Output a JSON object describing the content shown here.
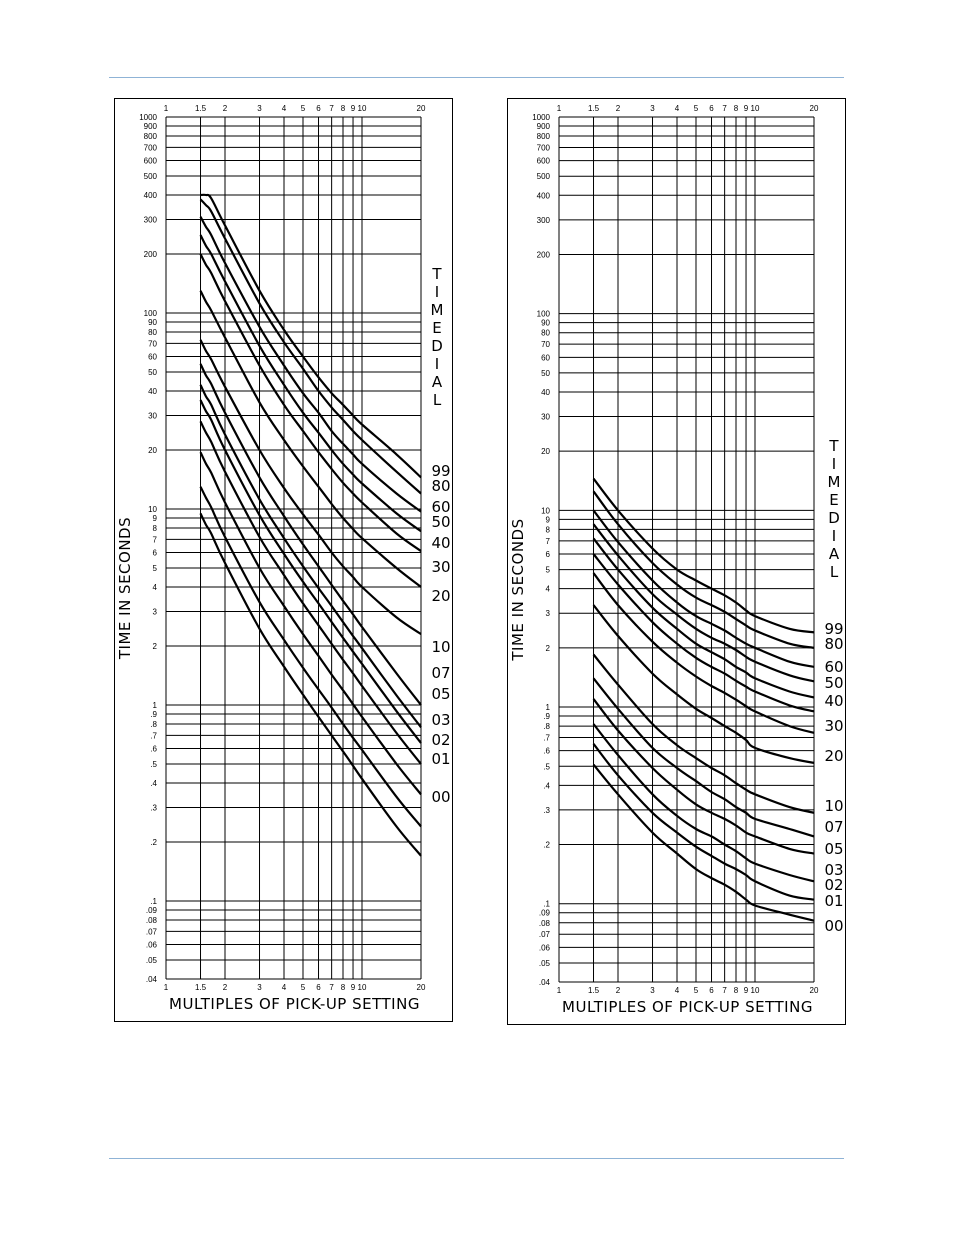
{
  "chart_data": [
    {
      "type": "line",
      "xlabel": "MULTIPLES OF PICK-UP SETTING",
      "ylabel": "TIME IN SECONDS",
      "legend_title": "TIMEDIAL",
      "x_scale": "log",
      "y_scale": "log",
      "xlim": [
        1,
        20
      ],
      "ylim": [
        0.04,
        1000
      ],
      "grid": true,
      "x_ticks": [
        1,
        1.5,
        2,
        3,
        4,
        5,
        6,
        7,
        8,
        9,
        10,
        20
      ],
      "x_tick_labels": [
        "1",
        "1.5",
        "2",
        "3",
        "4",
        "5",
        "6",
        "7",
        "8",
        "9",
        "10",
        "20"
      ],
      "y_ticks": [
        1000,
        900,
        800,
        700,
        600,
        500,
        400,
        300,
        200,
        100,
        90,
        80,
        70,
        60,
        50,
        40,
        30,
        20,
        10,
        9,
        8,
        7,
        6,
        5,
        4,
        3,
        2,
        1,
        0.9,
        0.8,
        0.7,
        0.6,
        0.5,
        0.4,
        0.3,
        0.2,
        0.1,
        0.09,
        0.08,
        0.07,
        0.06,
        0.05,
        0.04
      ],
      "y_tick_labels": [
        "1000",
        "900",
        "800",
        "700",
        "600",
        "500",
        "400",
        "300",
        "200",
        "100",
        "90",
        "80",
        "70",
        "60",
        "50",
        "40",
        "30",
        "20",
        "10",
        "9",
        "8",
        "7",
        "6",
        "5",
        "4",
        "3",
        "2",
        "1",
        ".9",
        ".8",
        ".7",
        ".6",
        ".5",
        ".4",
        ".3",
        ".2",
        ".1",
        ".09",
        ".08",
        ".07",
        ".06",
        ".05",
        ".04"
      ],
      "x": [
        1.5,
        1.6,
        1.7,
        2,
        3,
        4,
        5,
        6,
        7,
        8,
        9,
        10,
        15,
        20
      ],
      "series": [
        {
          "name": "99",
          "values": [
            400,
            400,
            385,
            280,
            130,
            82,
            60,
            47,
            39,
            34,
            30,
            27,
            19,
            14.5
          ]
        },
        {
          "name": "80",
          "values": [
            380,
            355,
            330,
            240,
            112,
            71,
            52,
            40,
            33,
            28.5,
            25,
            22.5,
            15.5,
            12
          ]
        },
        {
          "name": "60",
          "values": [
            310,
            275,
            250,
            180,
            85,
            54,
            39,
            31,
            25,
            21.5,
            19,
            17,
            12,
            9.7
          ]
        },
        {
          "name": "50",
          "values": [
            250,
            220,
            200,
            145,
            68,
            43,
            31,
            24.5,
            20,
            17,
            15,
            13.5,
            9.5,
            7.7
          ]
        },
        {
          "name": "40",
          "values": [
            200,
            176,
            160,
            115,
            54,
            34,
            25,
            19.5,
            16,
            13.6,
            12,
            10.8,
            7.5,
            6.1
          ]
        },
        {
          "name": "30",
          "values": [
            130,
            114,
            103,
            75,
            35,
            22.5,
            16.5,
            13,
            10.6,
            9,
            7.9,
            7.1,
            5,
            4
          ]
        },
        {
          "name": "20",
          "values": [
            73,
            64,
            58,
            42,
            20,
            12.8,
            9.4,
            7.4,
            6,
            5.1,
            4.5,
            4,
            2.8,
            2.3
          ]
        },
        {
          "name": "10",
          "values": [
            55,
            48,
            43.5,
            31,
            14.5,
            9.2,
            6.6,
            5.1,
            4.1,
            3.4,
            2.9,
            2.5,
            1.45,
            1
          ]
        },
        {
          "name": "07",
          "values": [
            43,
            37.5,
            34,
            24,
            11.2,
            7.1,
            5.1,
            3.95,
            3.2,
            2.65,
            2.25,
            1.95,
            1.12,
            0.77
          ]
        },
        {
          "name": "05",
          "values": [
            36,
            31.5,
            28.5,
            20,
            9.3,
            5.9,
            4.25,
            3.3,
            2.65,
            2.2,
            1.87,
            1.62,
            0.93,
            0.64
          ]
        },
        {
          "name": "03",
          "values": [
            28,
            24.5,
            22,
            15.5,
            7.2,
            4.6,
            3.3,
            2.55,
            2.05,
            1.7,
            1.45,
            1.25,
            0.72,
            0.5
          ]
        },
        {
          "name": "02",
          "values": [
            19.5,
            17,
            15.3,
            10.8,
            5,
            3.2,
            2.3,
            1.78,
            1.43,
            1.19,
            1.01,
            0.87,
            0.5,
            0.35
          ]
        },
        {
          "name": "01",
          "values": [
            13,
            11.4,
            10.2,
            7.2,
            3.35,
            2.15,
            1.55,
            1.2,
            0.97,
            0.8,
            0.68,
            0.59,
            0.34,
            0.24
          ]
        },
        {
          "name": "00",
          "values": [
            9.5,
            8.3,
            7.5,
            5.3,
            2.45,
            1.57,
            1.13,
            0.87,
            0.7,
            0.58,
            0.49,
            0.42,
            0.24,
            0.17
          ]
        }
      ]
    },
    {
      "type": "line",
      "xlabel": "MULTIPLES OF PICK-UP SETTING",
      "ylabel": "TIME IN SECONDS",
      "legend_title": "TIMEDIAL",
      "x_scale": "log",
      "y_scale": "log",
      "xlim": [
        1,
        20
      ],
      "ylim": [
        0.04,
        1000
      ],
      "grid": true,
      "x_ticks": [
        1,
        1.5,
        2,
        3,
        4,
        5,
        6,
        7,
        8,
        9,
        10,
        20
      ],
      "x_tick_labels": [
        "1",
        "1.5",
        "2",
        "3",
        "4",
        "5",
        "6",
        "7",
        "8",
        "9",
        "10",
        "20"
      ],
      "y_ticks": [
        1000,
        900,
        800,
        700,
        600,
        500,
        400,
        300,
        200,
        100,
        90,
        80,
        70,
        60,
        50,
        40,
        30,
        20,
        10,
        9,
        8,
        7,
        6,
        5,
        4,
        3,
        2,
        1,
        0.9,
        0.8,
        0.7,
        0.6,
        0.5,
        0.4,
        0.3,
        0.2,
        0.1,
        0.09,
        0.08,
        0.07,
        0.06,
        0.05,
        0.04
      ],
      "y_tick_labels": [
        "1000",
        "900",
        "800",
        "700",
        "600",
        "500",
        "400",
        "300",
        "200",
        "100",
        "90",
        "80",
        "70",
        "60",
        "50",
        "40",
        "30",
        "20",
        "10",
        "9",
        "8",
        "7",
        "6",
        "5",
        "4",
        "3",
        "2",
        "1",
        ".9",
        ".8",
        ".7",
        ".6",
        ".5",
        ".4",
        ".3",
        ".2",
        ".1",
        ".09",
        ".08",
        ".07",
        ".06",
        ".05",
        ".04"
      ],
      "x": [
        1.5,
        2,
        3,
        4,
        5,
        6,
        7,
        8,
        9,
        10,
        15,
        20
      ],
      "series": [
        {
          "name": "99",
          "values": [
            14.5,
            10,
            6.4,
            5,
            4.4,
            4,
            3.7,
            3.4,
            3.1,
            2.9,
            2.5,
            2.4
          ]
        },
        {
          "name": "80",
          "values": [
            12.5,
            8.5,
            5.4,
            4.2,
            3.6,
            3.3,
            3.05,
            2.8,
            2.6,
            2.45,
            2.1,
            2
          ]
        },
        {
          "name": "60",
          "values": [
            10,
            6.9,
            4.4,
            3.4,
            2.9,
            2.65,
            2.45,
            2.25,
            2.1,
            2,
            1.7,
            1.6
          ]
        },
        {
          "name": "50",
          "values": [
            8.5,
            5.9,
            3.75,
            2.95,
            2.5,
            2.25,
            2.1,
            1.95,
            1.8,
            1.7,
            1.45,
            1.35
          ]
        },
        {
          "name": "40",
          "values": [
            7.2,
            5,
            3.2,
            2.5,
            2.1,
            1.9,
            1.75,
            1.6,
            1.5,
            1.4,
            1.2,
            1.12
          ]
        },
        {
          "name": "30",
          "values": [
            6,
            4.2,
            2.7,
            2.1,
            1.78,
            1.6,
            1.48,
            1.36,
            1.27,
            1.2,
            1.02,
            0.95
          ]
        },
        {
          "name": "20",
          "values": [
            4.8,
            3.3,
            2.15,
            1.68,
            1.43,
            1.28,
            1.18,
            1.09,
            1.01,
            0.95,
            0.8,
            0.74
          ]
        },
        {
          "name": "10",
          "values": [
            3.3,
            2.3,
            1.48,
            1.16,
            0.98,
            0.88,
            0.8,
            0.74,
            0.68,
            0.62,
            0.55,
            0.52
          ]
        },
        {
          "name": "07",
          "values": [
            1.85,
            1.3,
            0.82,
            0.64,
            0.55,
            0.49,
            0.45,
            0.41,
            0.38,
            0.36,
            0.31,
            0.29
          ]
        },
        {
          "name": "05",
          "values": [
            1.4,
            0.98,
            0.62,
            0.49,
            0.42,
            0.37,
            0.34,
            0.31,
            0.29,
            0.27,
            0.24,
            0.22
          ]
        },
        {
          "name": "03",
          "values": [
            1.1,
            0.76,
            0.49,
            0.38,
            0.32,
            0.29,
            0.27,
            0.25,
            0.23,
            0.22,
            0.19,
            0.18
          ]
        },
        {
          "name": "02",
          "values": [
            0.82,
            0.57,
            0.36,
            0.28,
            0.24,
            0.22,
            0.2,
            0.185,
            0.17,
            0.16,
            0.14,
            0.13
          ]
        },
        {
          "name": "01",
          "values": [
            0.65,
            0.45,
            0.29,
            0.23,
            0.195,
            0.175,
            0.16,
            0.15,
            0.14,
            0.13,
            0.11,
            0.105
          ]
        },
        {
          "name": "00",
          "values": [
            0.51,
            0.36,
            0.23,
            0.18,
            0.15,
            0.135,
            0.125,
            0.115,
            0.105,
            0.098,
            0.088,
            0.082
          ]
        }
      ]
    }
  ]
}
